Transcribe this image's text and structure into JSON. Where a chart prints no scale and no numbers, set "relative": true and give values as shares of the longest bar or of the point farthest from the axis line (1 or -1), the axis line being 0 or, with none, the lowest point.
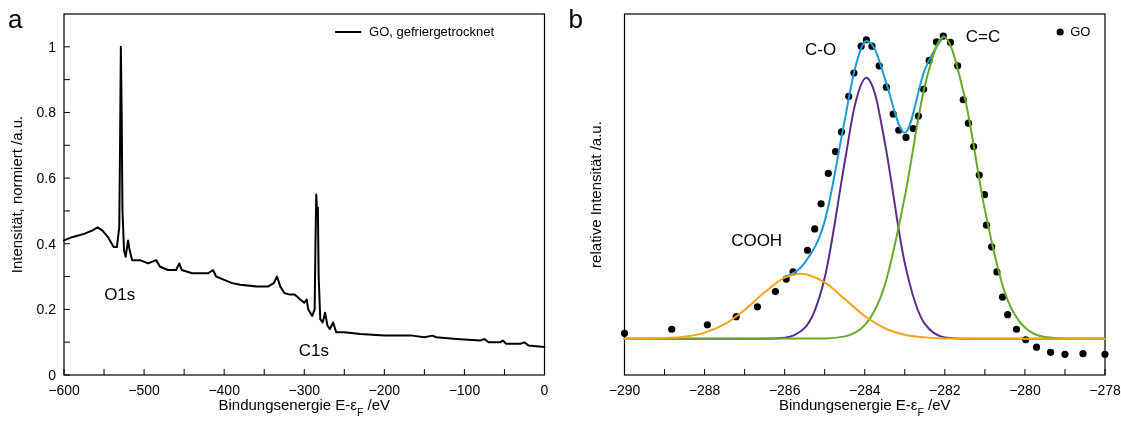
{
  "chart_data": [
    {
      "type": "line",
      "title": "a",
      "xlabel": "Bindungsenergie E-ε$_{F}$ /eV",
      "ylabel": "Intensität, normiert /a.u.",
      "xlim": [
        -600,
        0
      ],
      "ylim": [
        0,
        1.1
      ],
      "xticks": [
        -600,
        {
          "value": -550,
          "label": null
        },
        -500,
        {
          "value": -450,
          "label": null
        },
        -400,
        {
          "value": -350,
          "label": null
        },
        -300,
        {
          "value": -250,
          "label": null
        },
        -200,
        {
          "value": -150,
          "label": null
        },
        -100,
        {
          "value": -50,
          "label": null
        },
        0
      ],
      "yticks": [
        0,
        {
          "value": 0.1,
          "label": null
        },
        0.2,
        {
          "value": 0.3,
          "label": null
        },
        0.4,
        {
          "value": 0.5,
          "label": null
        },
        0.6,
        {
          "value": 0.7,
          "label": null
        },
        0.8,
        {
          "value": 0.9,
          "label": null
        },
        1
      ],
      "legend": "top right",
      "series": [
        {
          "name": "GO, gefriergetrocknet",
          "color": "#000000",
          "x": [
            -600,
            -590,
            -575,
            -565,
            -558,
            -552,
            -545,
            -538,
            -534,
            -531,
            -530,
            -529,
            -528,
            -527,
            -525,
            -523,
            -520,
            -518,
            -515,
            -505,
            -495,
            -485,
            -480,
            -470,
            -460,
            -456,
            -453,
            -440,
            -430,
            -420,
            -414,
            -410,
            -400,
            -390,
            -380,
            -360,
            -345,
            -338,
            -334,
            -330,
            -325,
            -318,
            -312,
            -305,
            -300,
            -297,
            -295,
            -290,
            -287,
            -286,
            -285,
            -284,
            -283,
            -282,
            -280,
            -277,
            -274,
            -271,
            -268,
            -264,
            -260,
            -250,
            -230,
            -200,
            -165,
            -150,
            -140,
            -135,
            -110,
            -80,
            -75,
            -70,
            -55,
            -52,
            -48,
            -30,
            -25,
            -20,
            0
          ],
          "values": [
            0.41,
            0.42,
            0.43,
            0.44,
            0.45,
            0.44,
            0.42,
            0.39,
            0.39,
            0.45,
            0.7,
            1.0,
            0.8,
            0.5,
            0.38,
            0.36,
            0.41,
            0.38,
            0.35,
            0.35,
            0.34,
            0.35,
            0.33,
            0.32,
            0.32,
            0.34,
            0.32,
            0.31,
            0.31,
            0.31,
            0.32,
            0.3,
            0.29,
            0.28,
            0.275,
            0.27,
            0.27,
            0.28,
            0.3,
            0.27,
            0.25,
            0.245,
            0.245,
            0.23,
            0.22,
            0.23,
            0.2,
            0.18,
            0.2,
            0.4,
            0.55,
            0.5,
            0.51,
            0.3,
            0.17,
            0.16,
            0.19,
            0.15,
            0.14,
            0.16,
            0.13,
            0.13,
            0.125,
            0.12,
            0.12,
            0.115,
            0.12,
            0.115,
            0.11,
            0.105,
            0.11,
            0.1,
            0.1,
            0.105,
            0.095,
            0.095,
            0.1,
            0.09,
            0.085
          ]
        }
      ],
      "annotations": [
        "O1s",
        "C1s"
      ]
    },
    {
      "type": "line",
      "title": "b",
      "xlabel": "Bindungsenergie E-ε$_{F}$ /eV",
      "ylabel": "relative Intensität /a.u.",
      "relative": true,
      "xlim": [
        -290,
        -278
      ],
      "xticks": [
        -290,
        {
          "value": -289,
          "label": null
        },
        -288,
        {
          "value": -287,
          "label": null
        },
        -286,
        {
          "value": -285,
          "label": null
        },
        -284,
        {
          "value": -283,
          "label": null
        },
        -282,
        {
          "value": -281,
          "label": null
        },
        -280,
        {
          "value": -279,
          "label": null
        },
        -278
      ],
      "legend": "top right",
      "series": [
        {
          "name": "GO",
          "type": "scatter",
          "marker": "circle",
          "color": "#000000",
          "x": [
            -290,
            -288.82,
            -287.93,
            -287.21,
            -286.68,
            -286.23,
            -285.96,
            -285.79,
            -285.43,
            -285.25,
            -285.09,
            -284.91,
            -284.73,
            -284.58,
            -284.4,
            -284.27,
            -284.09,
            -283.96,
            -283.82,
            -283.64,
            -283.46,
            -283.29,
            -283.15,
            -282.97,
            -282.79,
            -282.66,
            -282.53,
            -282.39,
            -282.21,
            -282.04,
            -281.86,
            -281.68,
            -281.54,
            -281.41,
            -281.28,
            -281.14,
            -281.01,
            -280.96,
            -280.83,
            -280.7,
            -280.56,
            -280.43,
            -280.21,
            -279.98,
            -279.71,
            -279.36,
            -279,
            -278.55,
            -278
          ],
          "values": [
            0.123,
            0.135,
            0.148,
            0.172,
            0.201,
            0.246,
            0.283,
            0.304,
            0.368,
            0.431,
            0.505,
            0.595,
            0.659,
            0.717,
            0.822,
            0.891,
            0.97,
            0.989,
            0.97,
            0.912,
            0.849,
            0.77,
            0.722,
            0.701,
            0.727,
            0.764,
            0.843,
            0.928,
            0.983,
            1.0,
            0.981,
            0.912,
            0.812,
            0.743,
            0.674,
            0.59,
            0.532,
            0.442,
            0.378,
            0.304,
            0.23,
            0.178,
            0.135,
            0.104,
            0.082,
            0.067,
            0.061,
            0.063,
            0.061
          ]
        },
        {
          "color": "#1f9ad6",
          "x": [
            -286,
            -285.5,
            -285,
            -284.5,
            -284.25,
            -283.96,
            -283.75,
            -283.5,
            -283,
            -282.5,
            -282.03
          ],
          "values": [
            0.29,
            0.331,
            0.454,
            0.752,
            0.901,
            0.985,
            0.962,
            0.876,
            0.715,
            0.901,
            1.0
          ]
        },
        {
          "color": "#5b2d8e",
          "x": [
            -290,
            -286.5,
            -286,
            -285.5,
            -285,
            -284.5,
            -284.25,
            -283.96,
            -283.75,
            -283.5,
            -283,
            -282.5,
            -282,
            -281.5,
            -278
          ],
          "values": [
            0.107,
            0.107,
            0.11,
            0.139,
            0.287,
            0.628,
            0.794,
            0.877,
            0.832,
            0.687,
            0.33,
            0.151,
            0.111,
            0.107,
            0.107
          ]
        },
        {
          "color": "#6aaa2a",
          "x": [
            -290,
            -285,
            -284.5,
            -284,
            -283.5,
            -283,
            -282.5,
            -282.03,
            -281.5,
            -281,
            -280.5,
            -280,
            -279.5,
            -279,
            -278
          ],
          "values": [
            0.107,
            0.108,
            0.114,
            0.147,
            0.265,
            0.526,
            0.853,
            0.997,
            0.817,
            0.487,
            0.243,
            0.14,
            0.112,
            0.108,
            0.107
          ]
        },
        {
          "color": "#f7a21b",
          "x": [
            -290,
            -289.5,
            -289,
            -288.5,
            -288,
            -287.5,
            -287,
            -286.5,
            -286,
            -285.6,
            -285,
            -284.5,
            -284,
            -283.5,
            -283,
            -282.5,
            -282,
            -281,
            -278
          ],
          "values": [
            0.107,
            0.107,
            0.109,
            0.113,
            0.125,
            0.15,
            0.192,
            0.244,
            0.287,
            0.299,
            0.273,
            0.224,
            0.174,
            0.138,
            0.119,
            0.111,
            0.108,
            0.107,
            0.107
          ]
        }
      ],
      "annotations": [
        "C-O",
        "C=C",
        "COOH"
      ]
    }
  ]
}
